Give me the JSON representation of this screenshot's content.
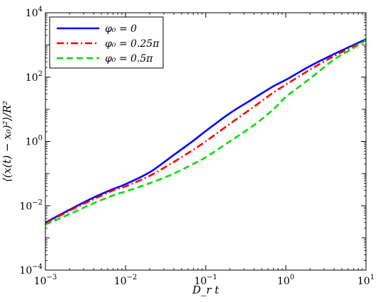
{
  "chart_data": {
    "type": "line",
    "xscale": "log",
    "yscale": "log",
    "xlim": [
      0.001,
      10
    ],
    "ylim": [
      0.0001,
      10000
    ],
    "xlabel": "D_r t",
    "ylabel": "⟨(x(t) − x₀)²⟩/R²",
    "grid": false,
    "legend_position": "top-left",
    "x_ticks": [
      0.001,
      0.01,
      0.1,
      1,
      10
    ],
    "x_tick_labels": [
      {
        "base": "10",
        "exp": "−3"
      },
      {
        "base": "10",
        "exp": "−2"
      },
      {
        "base": "10",
        "exp": "−1"
      },
      {
        "base": "10",
        "exp": "0"
      },
      {
        "base": "10",
        "exp": "1"
      }
    ],
    "y_ticks": [
      0.0001,
      0.01,
      1,
      100,
      10000
    ],
    "y_tick_labels": [
      {
        "base": "10",
        "exp": "−4"
      },
      {
        "base": "10",
        "exp": "−2"
      },
      {
        "base": "10",
        "exp": "0"
      },
      {
        "base": "10",
        "exp": "2"
      },
      {
        "base": "10",
        "exp": "4"
      }
    ],
    "series": [
      {
        "name": "φ₀ = 0",
        "color": "#0000ff",
        "dash": "solid",
        "points": [
          [
            0.001,
            0.003
          ],
          [
            0.002,
            0.0075
          ],
          [
            0.004,
            0.018
          ],
          [
            0.007,
            0.033
          ],
          [
            0.01,
            0.047
          ],
          [
            0.02,
            0.11
          ],
          [
            0.04,
            0.38
          ],
          [
            0.07,
            1.05
          ],
          [
            0.1,
            2.1
          ],
          [
            0.2,
            7.5
          ],
          [
            0.4,
            22
          ],
          [
            0.7,
            52
          ],
          [
            1,
            82
          ],
          [
            2,
            220
          ],
          [
            4,
            520
          ],
          [
            7,
            1000
          ],
          [
            10,
            1500
          ]
        ]
      },
      {
        "name": "φ₀ = 0.25π",
        "color": "#ff0000",
        "dash": "dashdot",
        "points": [
          [
            0.001,
            0.0028
          ],
          [
            0.002,
            0.007
          ],
          [
            0.004,
            0.016
          ],
          [
            0.007,
            0.03
          ],
          [
            0.01,
            0.04
          ],
          [
            0.02,
            0.085
          ],
          [
            0.04,
            0.23
          ],
          [
            0.07,
            0.55
          ],
          [
            0.1,
            1.0
          ],
          [
            0.2,
            3.5
          ],
          [
            0.4,
            12
          ],
          [
            0.7,
            33
          ],
          [
            1,
            58
          ],
          [
            2,
            170
          ],
          [
            4,
            450
          ],
          [
            7,
            900
          ],
          [
            10,
            1420
          ]
        ]
      },
      {
        "name": "φ₀ = 0.5π",
        "color": "#00e000",
        "dash": "dashed",
        "points": [
          [
            0.001,
            0.0026
          ],
          [
            0.002,
            0.0055
          ],
          [
            0.004,
            0.012
          ],
          [
            0.007,
            0.021
          ],
          [
            0.01,
            0.028
          ],
          [
            0.02,
            0.05
          ],
          [
            0.04,
            0.1
          ],
          [
            0.07,
            0.2
          ],
          [
            0.1,
            0.32
          ],
          [
            0.2,
            1.0
          ],
          [
            0.4,
            3.2
          ],
          [
            0.7,
            10
          ],
          [
            1,
            24
          ],
          [
            2,
            90
          ],
          [
            4,
            350
          ],
          [
            7,
            800
          ],
          [
            10,
            1380
          ]
        ]
      }
    ]
  }
}
